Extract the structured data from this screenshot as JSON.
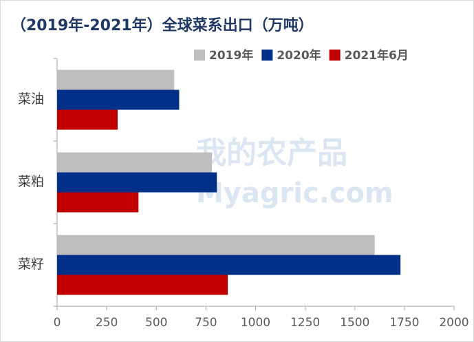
{
  "chart_data": {
    "type": "bar",
    "orientation": "horizontal",
    "title": "（2019年-2021年）全球菜系出口（万吨）",
    "categories": [
      "菜油",
      "菜粕",
      "菜籽"
    ],
    "series": [
      {
        "name": "2019年",
        "color": "#bfbfbf",
        "values": [
          590,
          780,
          1600
        ]
      },
      {
        "name": "2020年",
        "color": "#003087",
        "values": [
          615,
          805,
          1730
        ]
      },
      {
        "name": "2021年6月",
        "color": "#c00000",
        "values": [
          305,
          410,
          860
        ]
      }
    ],
    "xlim": [
      0,
      2000
    ],
    "xticks": [
      0,
      250,
      500,
      750,
      1000,
      1250,
      1500,
      1750,
      2000
    ],
    "legend": "top-right",
    "watermark": [
      "我的农产品",
      "Myagric.com"
    ]
  }
}
